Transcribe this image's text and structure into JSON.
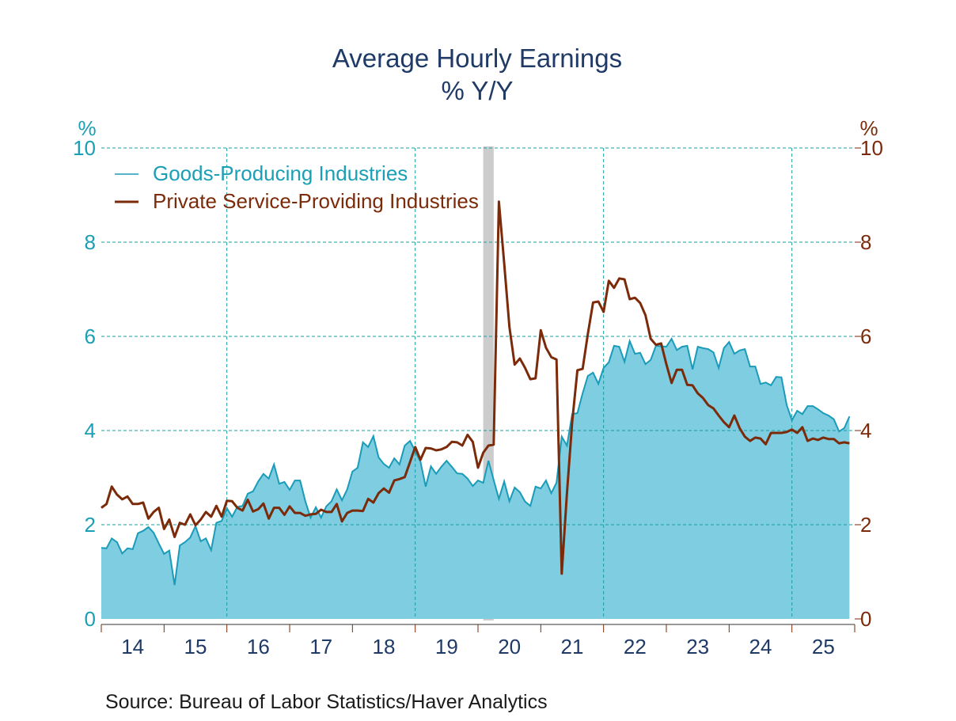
{
  "chart_data": {
    "type": "area",
    "title": "Average Hourly Earnings",
    "subtitle": "% Y/Y",
    "left_axis": {
      "unit_label": "%",
      "ylim": [
        0,
        10
      ],
      "ticks": [
        "0",
        "2",
        "4",
        "6",
        "8",
        "10"
      ]
    },
    "right_axis": {
      "unit_label": "%",
      "ylim": [
        0,
        10
      ],
      "ticks": [
        "0",
        "2",
        "4",
        "6",
        "8",
        "10"
      ]
    },
    "x_start": 2014,
    "x_end": 2026,
    "x_tick_labels": [
      "14",
      "15",
      "16",
      "17",
      "18",
      "19",
      "20",
      "21",
      "22",
      "23",
      "24",
      "25"
    ],
    "frequency": "monthly, Jan 2014 - Dec 2025",
    "recession": [
      2020.083,
      2020.25
    ],
    "grid": true,
    "legend_position": "top-left",
    "series": [
      {
        "name": "Goods-Producing Industries",
        "style": "area",
        "color": "#1a9bb8",
        "fill": "#7ecde0",
        "values": [
          1.51,
          1.5,
          1.71,
          1.63,
          1.39,
          1.5,
          1.48,
          1.82,
          1.87,
          1.95,
          1.83,
          1.6,
          1.38,
          1.45,
          0.72,
          1.56,
          1.63,
          1.73,
          1.97,
          1.65,
          1.71,
          1.46,
          2.04,
          2.08,
          2.35,
          2.17,
          2.38,
          2.4,
          2.66,
          2.71,
          2.92,
          3.08,
          2.98,
          3.28,
          2.87,
          2.91,
          2.74,
          2.94,
          2.94,
          2.5,
          2.15,
          2.37,
          2.15,
          2.39,
          2.5,
          2.75,
          2.52,
          2.75,
          3.13,
          3.21,
          3.75,
          3.65,
          3.88,
          3.43,
          3.29,
          3.21,
          3.41,
          3.28,
          3.68,
          3.78,
          3.56,
          3.34,
          2.81,
          3.24,
          3.08,
          3.23,
          3.36,
          3.23,
          3.09,
          3.08,
          2.98,
          2.82,
          2.94,
          2.89,
          3.36,
          2.95,
          2.55,
          2.92,
          2.5,
          2.79,
          2.69,
          2.49,
          2.4,
          2.81,
          2.77,
          2.94,
          2.67,
          2.89,
          3.87,
          3.68,
          4.35,
          4.37,
          4.79,
          5.16,
          5.23,
          4.99,
          5.33,
          5.45,
          5.8,
          5.78,
          5.46,
          5.9,
          5.63,
          5.65,
          5.41,
          5.5,
          5.8,
          5.79,
          5.78,
          5.95,
          5.71,
          5.78,
          5.8,
          5.3,
          5.78,
          5.75,
          5.73,
          5.66,
          5.33,
          5.75,
          5.88,
          5.63,
          5.7,
          5.73,
          5.36,
          5.36,
          4.99,
          5.02,
          4.96,
          5.14,
          5.13,
          4.54,
          4.22,
          4.42,
          4.35,
          4.52,
          4.52,
          4.45,
          4.37,
          4.32,
          4.24,
          3.98,
          4.05,
          4.3
        ]
      },
      {
        "name": "Private Service-Providing Industries",
        "style": "line",
        "color": "#7b2a0a",
        "values": [
          2.36,
          2.44,
          2.81,
          2.64,
          2.54,
          2.6,
          2.44,
          2.44,
          2.47,
          2.13,
          2.27,
          2.36,
          1.91,
          2.11,
          1.74,
          2.04,
          2.0,
          2.22,
          1.99,
          2.11,
          2.27,
          2.17,
          2.4,
          2.17,
          2.51,
          2.5,
          2.36,
          2.3,
          2.53,
          2.28,
          2.33,
          2.45,
          2.13,
          2.36,
          2.36,
          2.21,
          2.39,
          2.25,
          2.25,
          2.19,
          2.22,
          2.23,
          2.32,
          2.27,
          2.27,
          2.44,
          2.07,
          2.25,
          2.3,
          2.3,
          2.29,
          2.55,
          2.47,
          2.67,
          2.77,
          2.68,
          2.94,
          2.97,
          3.01,
          3.33,
          3.65,
          3.38,
          3.63,
          3.62,
          3.58,
          3.6,
          3.65,
          3.76,
          3.75,
          3.68,
          3.91,
          3.76,
          3.21,
          3.53,
          3.68,
          3.7,
          8.86,
          7.55,
          6.2,
          5.4,
          5.53,
          5.33,
          5.09,
          5.11,
          6.13,
          5.76,
          5.56,
          5.51,
          0.96,
          2.67,
          4.18,
          5.28,
          5.31,
          6.05,
          6.72,
          6.74,
          6.52,
          7.18,
          7.03,
          7.23,
          7.21,
          6.79,
          6.82,
          6.71,
          6.45,
          5.95,
          5.82,
          5.85,
          5.41,
          5.01,
          5.29,
          5.29,
          4.97,
          4.96,
          4.79,
          4.69,
          4.54,
          4.47,
          4.32,
          4.18,
          4.07,
          4.32,
          4.05,
          3.87,
          3.78,
          3.85,
          3.83,
          3.71,
          3.95,
          3.95,
          3.95,
          3.97,
          4.02,
          3.95,
          4.07,
          3.78,
          3.83,
          3.8,
          3.85,
          3.82,
          3.82,
          3.73,
          3.75,
          3.73
        ]
      }
    ],
    "source": "Source:  Bureau of Labor Statistics/Haver Analytics"
  }
}
